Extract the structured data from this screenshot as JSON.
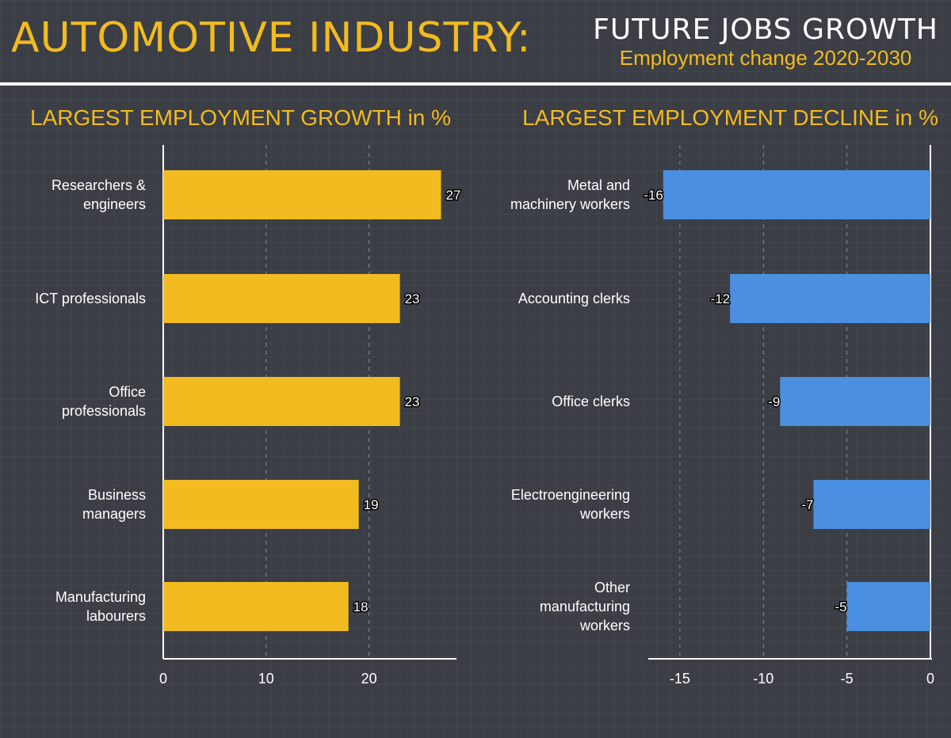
{
  "header": {
    "title": "AUTOMOTIVE INDUSTRY:",
    "subtitle": "FUTURE JOBS GROWTH",
    "subtitle2": "Employment change 2020-2030"
  },
  "colors": {
    "accent": "#f2bb1f",
    "growth_bar": "#f2bb1f",
    "decline_bar": "#4a8fe0",
    "background": "#3b3e45"
  },
  "chart_data": [
    {
      "type": "bar",
      "orientation": "horizontal",
      "title": "LARGEST EMPLOYMENT GROWTH in %",
      "categories": [
        [
          "Researchers &",
          "engineers"
        ],
        [
          "ICT professionals"
        ],
        [
          "Office",
          "professionals"
        ],
        [
          "Business",
          "managers"
        ],
        [
          "Manufacturing",
          "labourers"
        ]
      ],
      "values": [
        27,
        23,
        23,
        19,
        18
      ],
      "xlim": [
        0,
        28.5
      ],
      "xticks": [
        0,
        10,
        20
      ],
      "grid": "vertical dashed",
      "color": "#f2bb1f"
    },
    {
      "type": "bar",
      "orientation": "horizontal",
      "title": "LARGEST EMPLOYMENT DECLINE in %",
      "categories": [
        [
          "Metal and",
          "machinery workers"
        ],
        [
          "Accounting clerks"
        ],
        [
          "Office clerks"
        ],
        [
          "Electroengineering",
          "workers"
        ],
        [
          "Other",
          "manufacturing",
          "workers"
        ]
      ],
      "values": [
        -16,
        -12,
        -9,
        -7,
        -5
      ],
      "xlim": [
        -16.8,
        0
      ],
      "xticks": [
        -15,
        -10,
        -5,
        0
      ],
      "grid": "vertical dashed",
      "color": "#4a8fe0"
    }
  ]
}
